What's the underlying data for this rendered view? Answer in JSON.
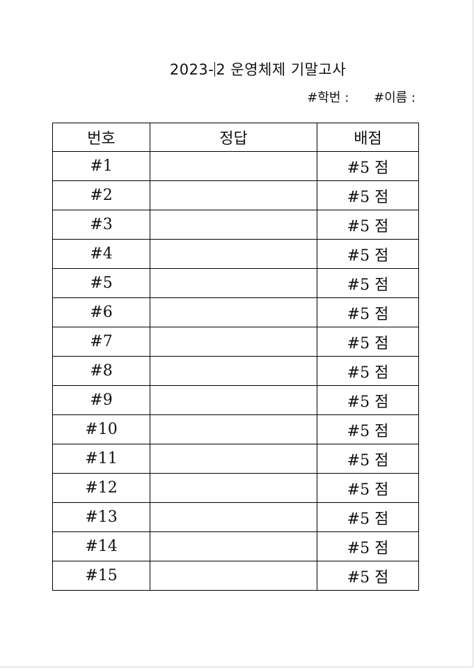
{
  "title": {
    "year_part": "2023-",
    "rest": "2 운영체제 기말고사"
  },
  "info": {
    "student_id_label": "#학번 :",
    "name_label": "#이름 :"
  },
  "table": {
    "headers": [
      "번호",
      "정답",
      "배점"
    ],
    "rows": [
      {
        "num": "#1",
        "answer": "",
        "score": "#5 점"
      },
      {
        "num": "#2",
        "answer": "",
        "score": "#5 점"
      },
      {
        "num": "#3",
        "answer": "",
        "score": "#5 점"
      },
      {
        "num": "#4",
        "answer": "",
        "score": "#5 점"
      },
      {
        "num": "#5",
        "answer": "",
        "score": "#5 점"
      },
      {
        "num": "#6",
        "answer": "",
        "score": "#5 점"
      },
      {
        "num": "#7",
        "answer": "",
        "score": "#5 점"
      },
      {
        "num": "#8",
        "answer": "",
        "score": "#5 점"
      },
      {
        "num": "#9",
        "answer": "",
        "score": "#5 점"
      },
      {
        "num": "#10",
        "answer": "",
        "score": "#5 점"
      },
      {
        "num": "#11",
        "answer": "",
        "score": "#5 점"
      },
      {
        "num": "#12",
        "answer": "",
        "score": "#5 점"
      },
      {
        "num": "#13",
        "answer": "",
        "score": "#5 점"
      },
      {
        "num": "#14",
        "answer": "",
        "score": "#5 점"
      },
      {
        "num": "#15",
        "answer": "",
        "score": "#5 점"
      }
    ]
  }
}
